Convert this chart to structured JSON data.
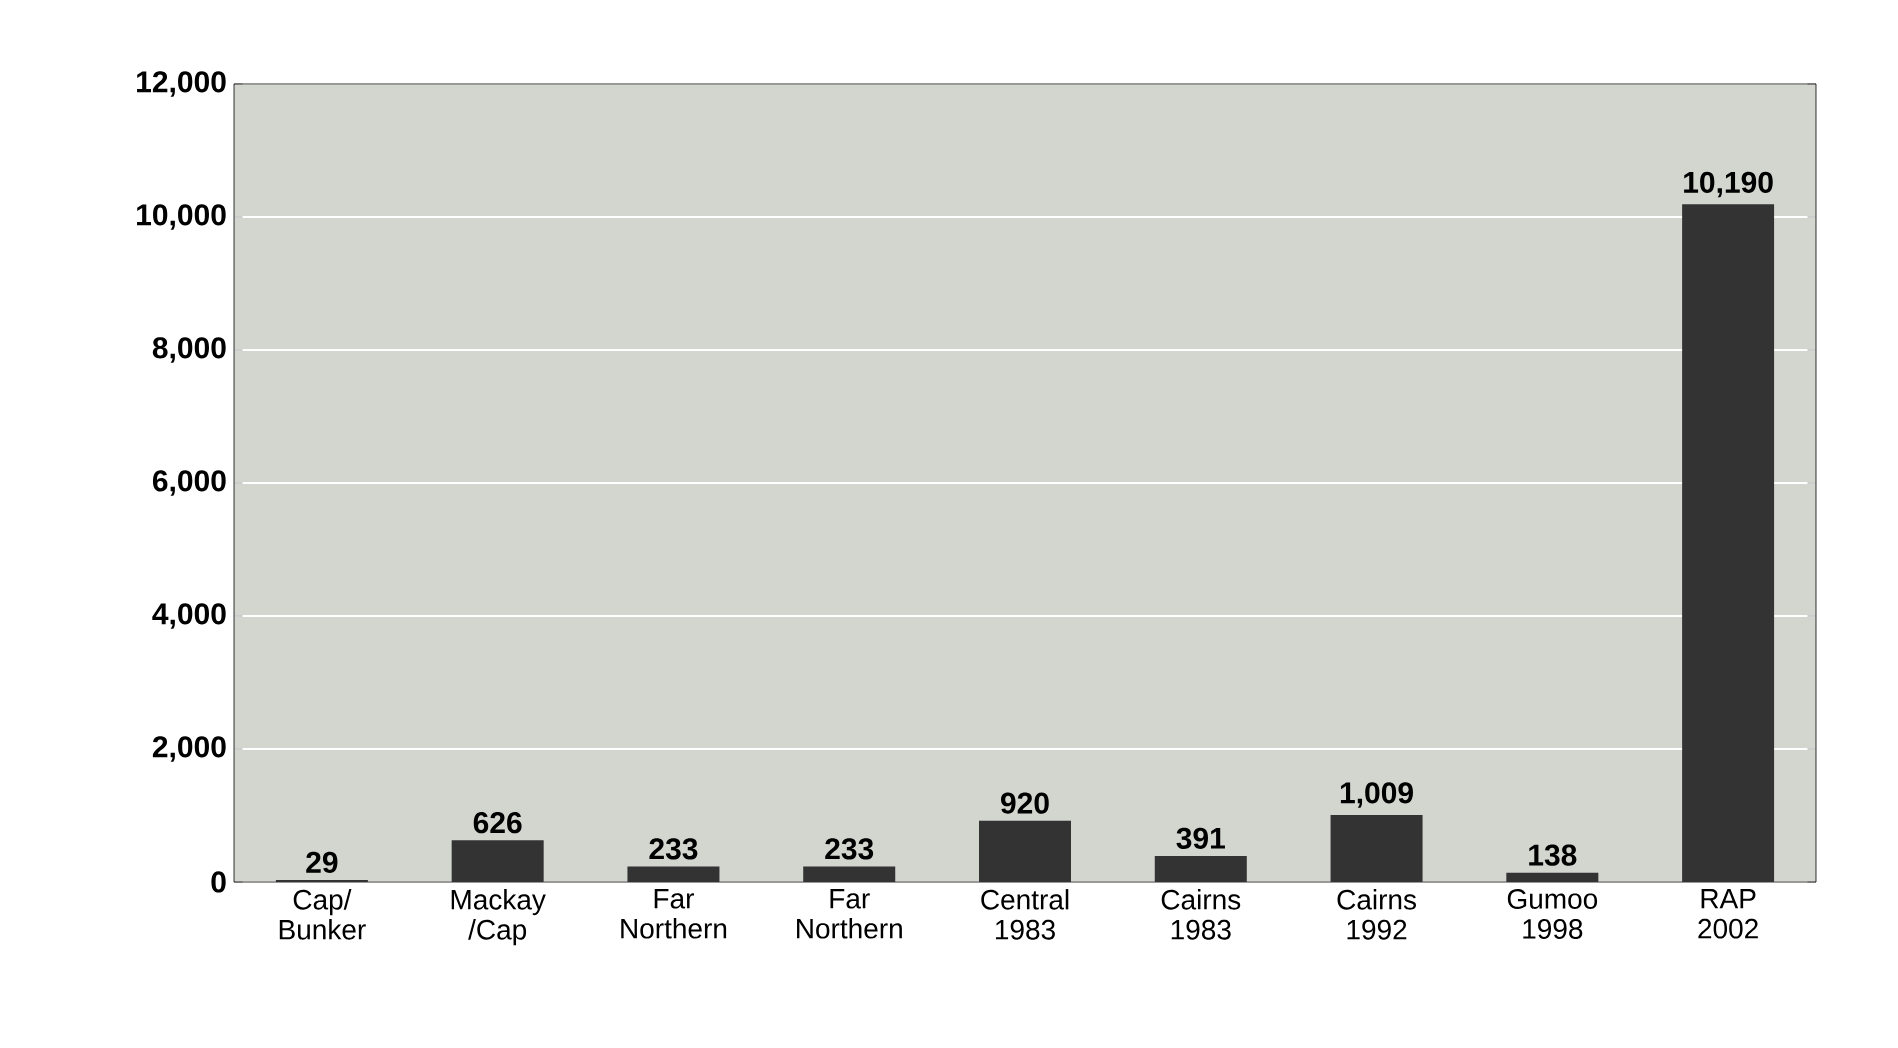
{
  "chart_data": {
    "type": "bar",
    "categories": [
      "Cap/ Bunker",
      "Mackay /Cap",
      "Far Northern",
      "Far Northern",
      "Central 1983",
      "Cairns 1983",
      "Cairns 1992",
      "Gumoo 1998",
      "RAP 2002"
    ],
    "values": [
      29,
      626,
      233,
      233,
      920,
      391,
      1009,
      138,
      10190
    ],
    "value_labels": [
      "29",
      "626",
      "233",
      "233",
      "920",
      "391",
      "1,009",
      "138",
      "10,190"
    ],
    "color": "#333333",
    "ylim": [
      0,
      12000
    ],
    "yticks": [
      0,
      {
        "value": 2000,
        "label": "2,000"
      },
      {
        "value": 4000,
        "label": "4,000"
      },
      {
        "value": 6000,
        "label": "6,000"
      },
      {
        "value": 8000,
        "label": "8,000"
      },
      {
        "value": 10000,
        "label": "10,000"
      },
      {
        "value": 12000,
        "label": "12,000"
      }
    ],
    "grid": "y"
  }
}
